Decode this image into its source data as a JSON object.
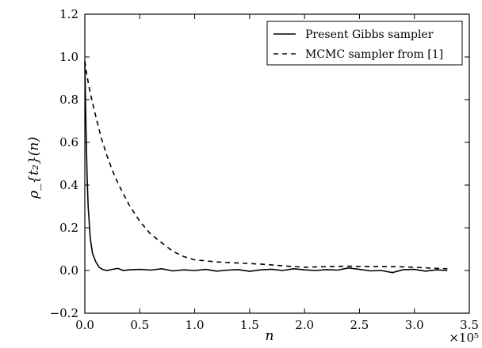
{
  "chart_data": {
    "type": "line",
    "xlabel": "n",
    "ylabel": "ρ_{t₂}(n)",
    "xlim": [
      0.0,
      3.5
    ],
    "ylim": [
      -0.2,
      1.2
    ],
    "x_multiplier_label": "×10⁵",
    "xticks": [
      "0.0",
      "0.5",
      "1.0",
      "1.5",
      "2.0",
      "2.5",
      "3.0",
      "3.5"
    ],
    "yticks": [
      "−0.2",
      "0.0",
      "0.2",
      "0.4",
      "0.6",
      "0.8",
      "1.0",
      "1.2"
    ],
    "grid": false,
    "legend_position": "top-right",
    "series": [
      {
        "name": "Present Gibbs sampler",
        "style": "solid",
        "x": [
          0.0,
          0.01,
          0.02,
          0.03,
          0.05,
          0.07,
          0.1,
          0.13,
          0.16,
          0.2,
          0.25,
          0.3,
          0.35,
          0.4,
          0.5,
          0.6,
          0.7,
          0.8,
          0.9,
          1.0,
          1.1,
          1.2,
          1.3,
          1.4,
          1.5,
          1.6,
          1.7,
          1.8,
          1.9,
          2.0,
          2.1,
          2.2,
          2.3,
          2.4,
          2.5,
          2.6,
          2.7,
          2.8,
          2.9,
          3.0,
          3.1,
          3.2,
          3.3
        ],
        "y": [
          0.98,
          0.68,
          0.45,
          0.3,
          0.15,
          0.08,
          0.04,
          0.015,
          0.005,
          0.0,
          0.005,
          0.01,
          0.0,
          0.003,
          0.005,
          0.002,
          0.008,
          -0.002,
          0.003,
          0.0,
          0.005,
          -0.003,
          0.002,
          0.004,
          -0.004,
          0.003,
          0.006,
          0.0,
          0.008,
          0.003,
          0.0,
          0.004,
          0.002,
          0.012,
          0.005,
          -0.002,
          0.0,
          -0.01,
          0.004,
          0.005,
          -0.003,
          0.003,
          0.0
        ]
      },
      {
        "name": "MCMC sampler from [1]",
        "style": "dashed",
        "x": [
          0.0,
          0.02,
          0.05,
          0.1,
          0.15,
          0.2,
          0.25,
          0.3,
          0.4,
          0.5,
          0.6,
          0.7,
          0.8,
          0.9,
          1.0,
          1.2,
          1.4,
          1.6,
          1.8,
          2.0,
          2.2,
          2.4,
          2.6,
          2.8,
          3.0,
          3.2,
          3.3
        ],
        "y": [
          0.98,
          0.91,
          0.83,
          0.72,
          0.62,
          0.54,
          0.47,
          0.41,
          0.31,
          0.23,
          0.17,
          0.13,
          0.09,
          0.065,
          0.05,
          0.04,
          0.035,
          0.03,
          0.022,
          0.015,
          0.018,
          0.02,
          0.018,
          0.018,
          0.015,
          0.01,
          0.008
        ]
      }
    ]
  }
}
